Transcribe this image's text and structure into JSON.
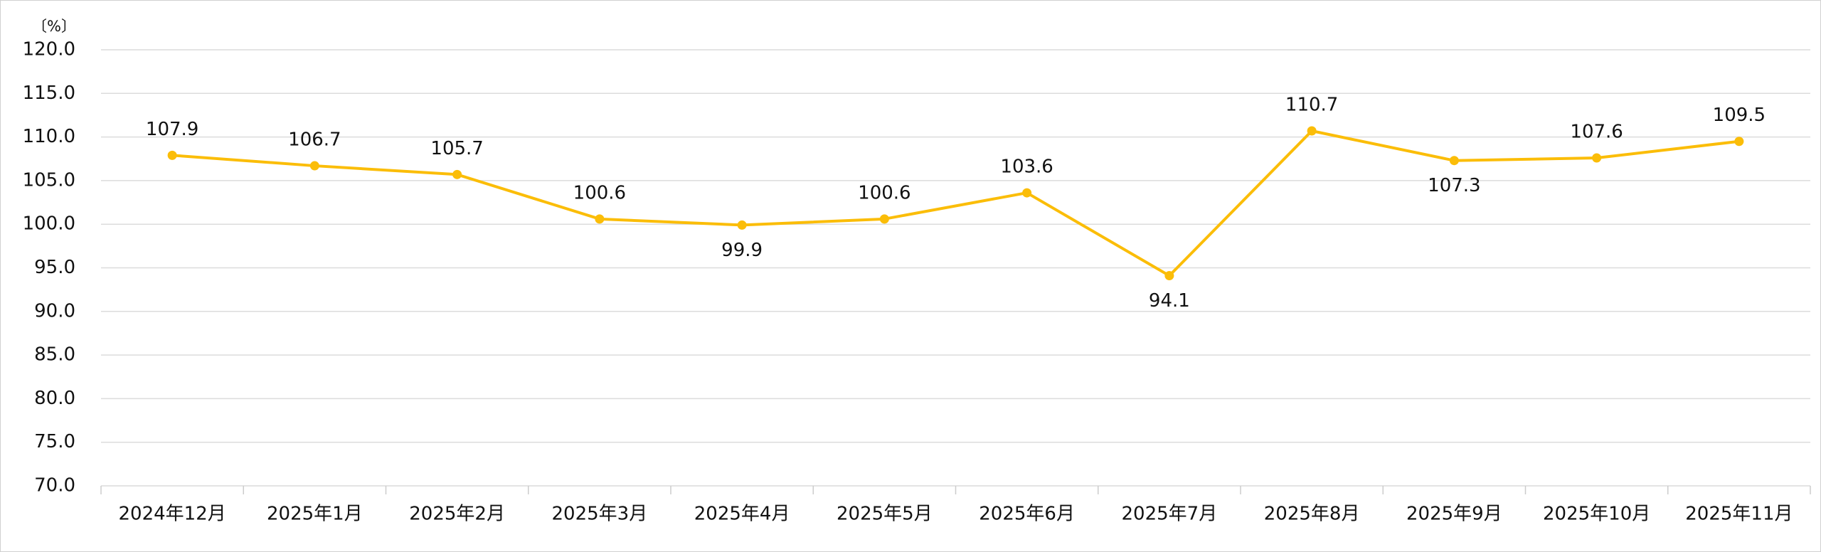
{
  "chart_data": {
    "type": "line",
    "y_unit": "〔%〕",
    "categories": [
      "2024年12月",
      "2025年1月",
      "2025年2月",
      "2025年3月",
      "2025年4月",
      "2025年5月",
      "2025年6月",
      "2025年7月",
      "2025年8月",
      "2025年9月",
      "2025年10月",
      "2025年11月"
    ],
    "values": [
      107.9,
      106.7,
      105.7,
      100.6,
      99.9,
      100.6,
      103.6,
      94.1,
      110.7,
      107.3,
      107.6,
      109.5
    ],
    "color": "#fbbd08",
    "ylim": [
      70,
      120
    ],
    "yticks": [
      {
        "value": 70,
        "label": "70.0"
      },
      {
        "value": 75,
        "label": "75.0"
      },
      {
        "value": 80,
        "label": "80.0"
      },
      {
        "value": 85,
        "label": "85.0"
      },
      {
        "value": 90,
        "label": "90.0"
      },
      {
        "value": 95,
        "label": "95.0"
      },
      {
        "value": 100,
        "label": "100.0"
      },
      {
        "value": 105,
        "label": "105.0"
      },
      {
        "value": 110,
        "label": "110.0"
      },
      {
        "value": 115,
        "label": "115.0"
      },
      {
        "value": 120,
        "label": "120.0"
      }
    ],
    "grid": true
  }
}
